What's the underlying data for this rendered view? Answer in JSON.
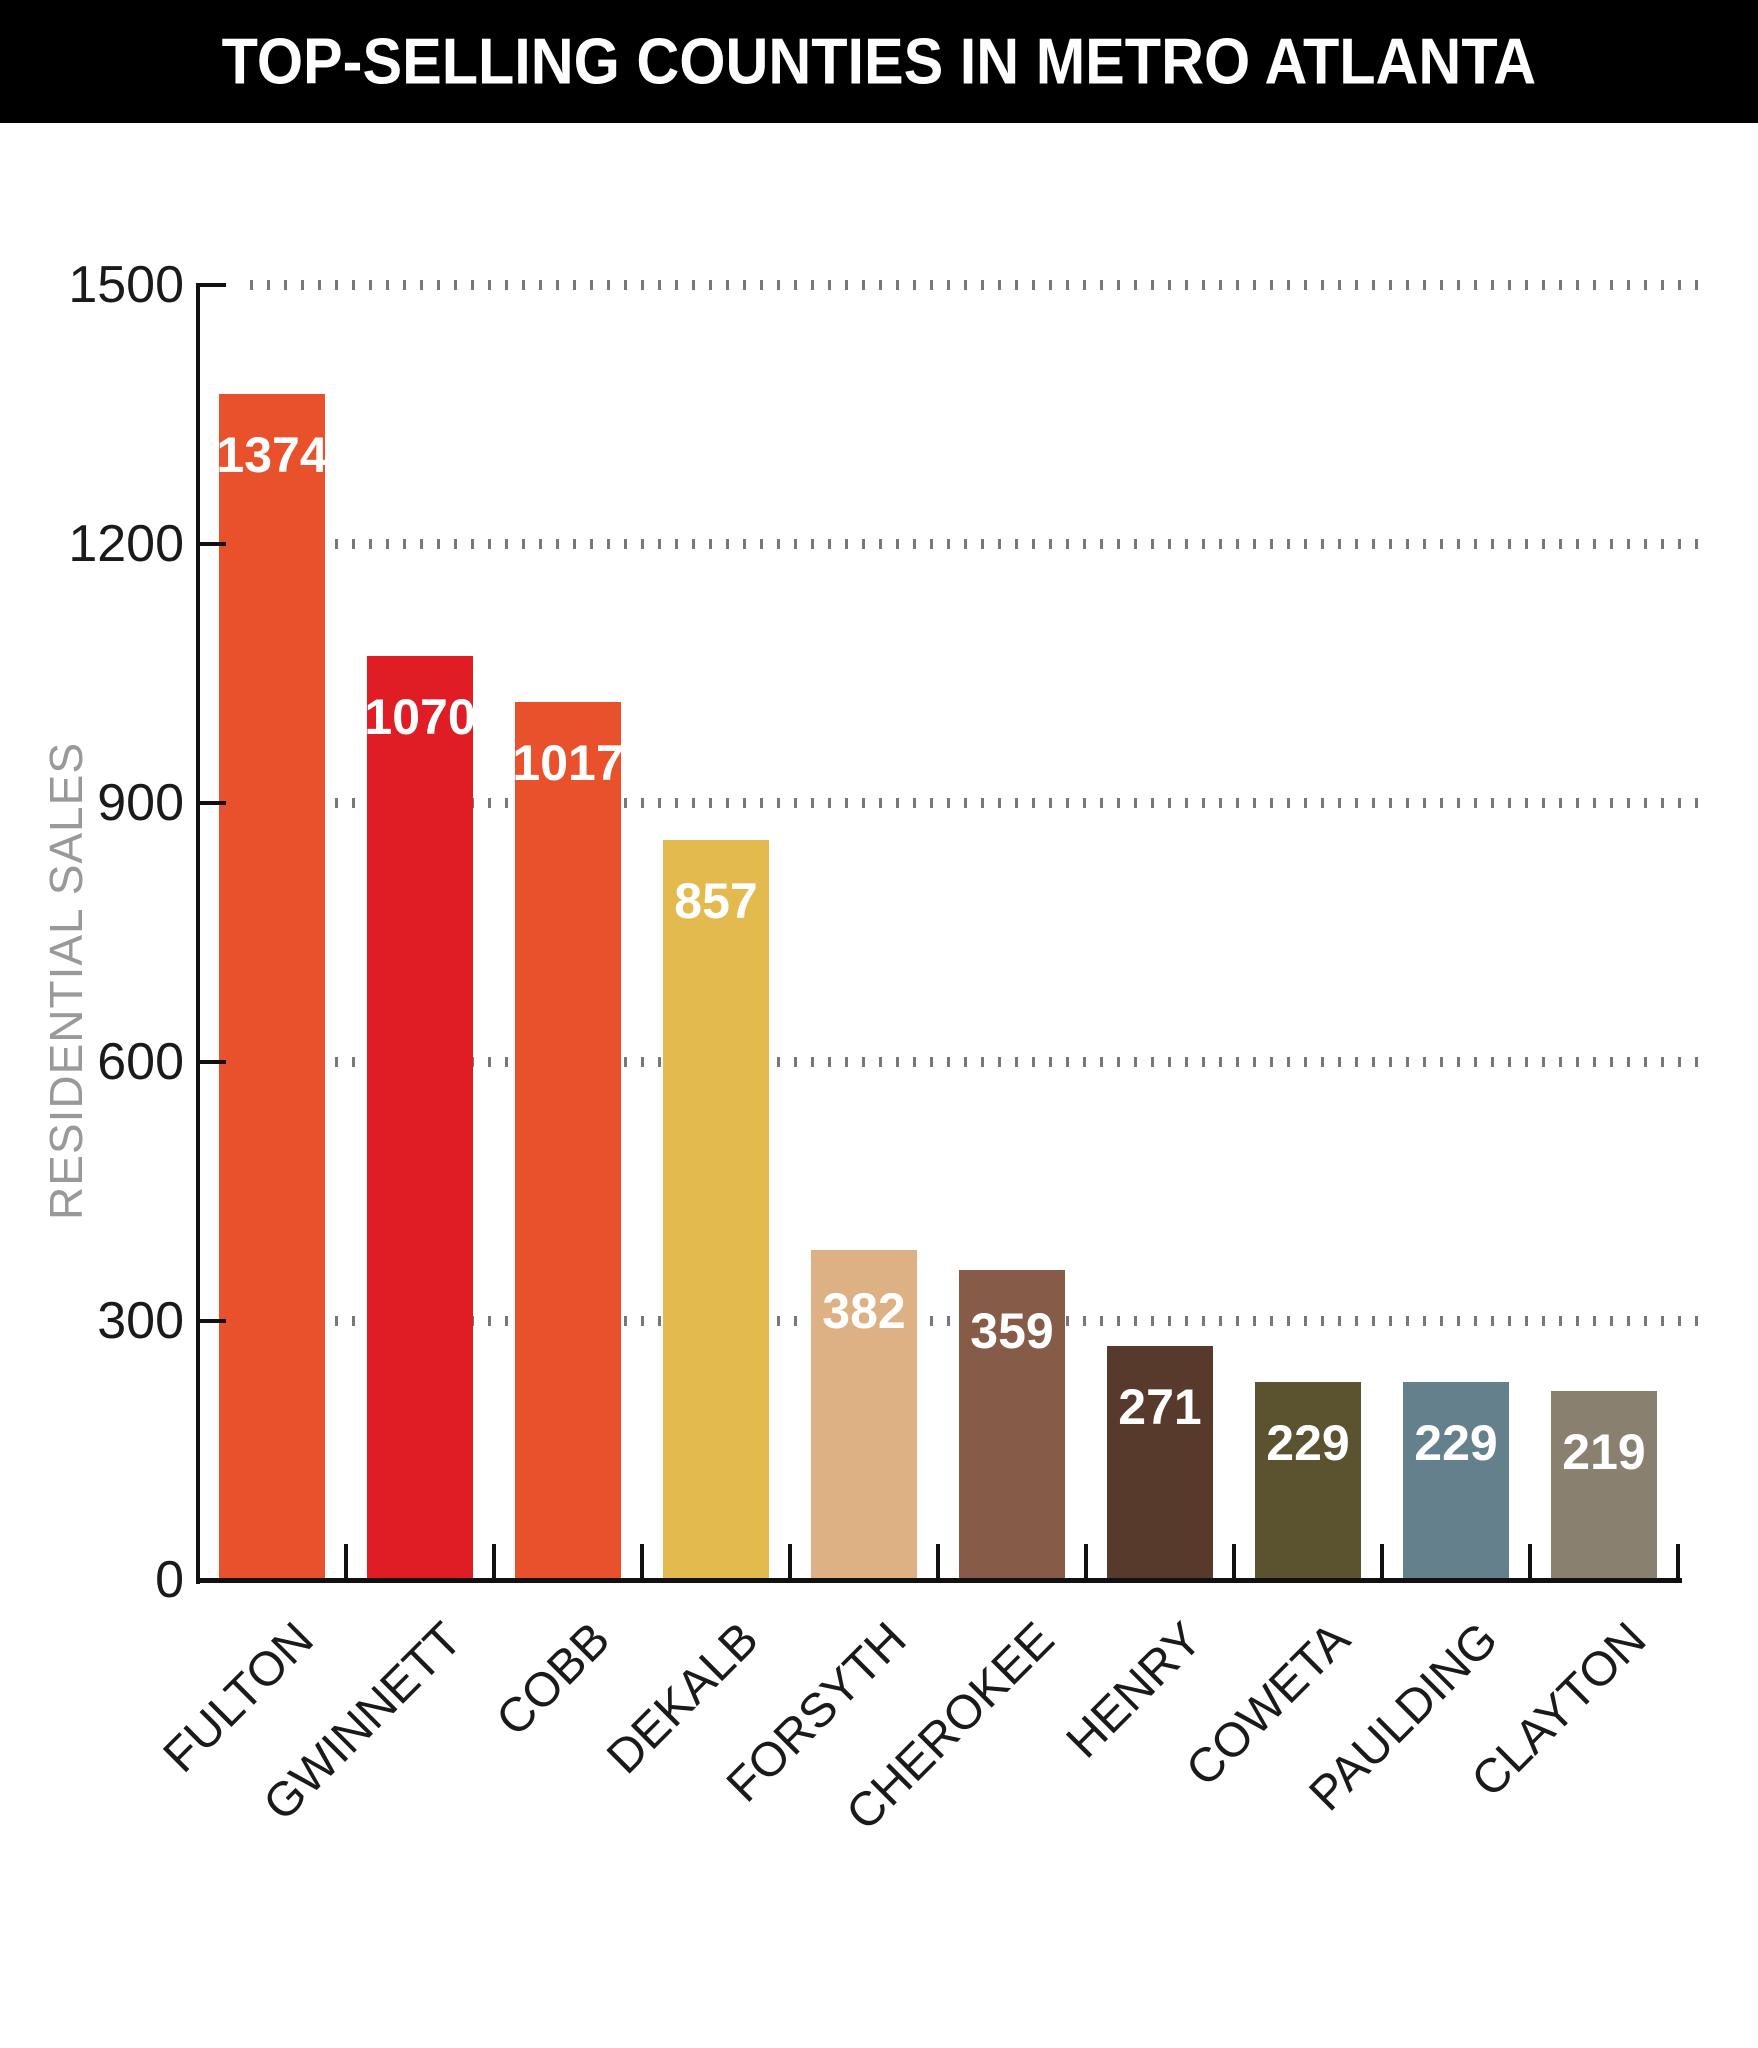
{
  "header": {
    "title": "TOP-SELLING COUNTIES IN METRO ATLANTA",
    "bg": "#000000",
    "fg": "#ffffff"
  },
  "chart_data": {
    "type": "bar",
    "title": "TOP-SELLING COUNTIES IN METRO ATLANTA",
    "xlabel": "",
    "ylabel": "RESIDENTIAL SALES",
    "ylim": [
      0,
      1500
    ],
    "yticks": [
      0,
      300,
      600,
      900,
      1200,
      1500
    ],
    "grid": "horizontal dotted gridlines at each y tick above 0",
    "legend": "none",
    "categories": [
      "FULTON",
      "GWINNETT",
      "COBB",
      "DEKALB",
      "FORSYTH",
      "CHEROKEE",
      "HENRY",
      "COWETA",
      "PAULDING",
      "CLAYTON"
    ],
    "values": [
      1374,
      1070,
      1017,
      857,
      382,
      359,
      271,
      229,
      229,
      219
    ],
    "bar_colors": [
      "#e8512b",
      "#e01d25",
      "#e8512b",
      "#e3ba4e",
      "#ddb183",
      "#865c49",
      "#573a2b",
      "#5b5230",
      "#64808d",
      "#8a8070"
    ],
    "value_label_color": "#ffffff",
    "axis_color": "#111111",
    "tick_label_color": "#1a1a1a",
    "ylabel_color": "#999999",
    "grid_color": "#787878"
  }
}
